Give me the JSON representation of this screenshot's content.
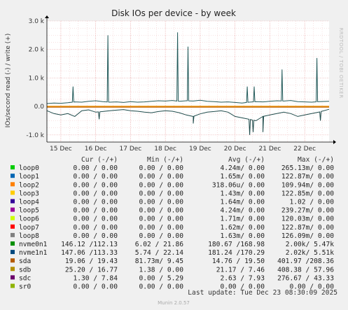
{
  "chart_data": {
    "type": "line",
    "title": "Disk IOs per device - by week",
    "ylabel": "IOs/second read (-) / write (+)",
    "side_label": "RRDTOOL / TOBI OETIKER",
    "ylim": [
      -1250,
      3000
    ],
    "yticks": [
      {
        "value": 3000,
        "label": "3.0 k"
      },
      {
        "value": 2000,
        "label": "2.0 k"
      },
      {
        "value": 1000,
        "label": "1.0 k"
      },
      {
        "value": 0,
        "label": "0.0"
      },
      {
        "value": -1000,
        "label": "-1.0 k"
      }
    ],
    "xlim": [
      0,
      8.1
    ],
    "xticks": [
      {
        "value": 0.4,
        "label": "15 Dec"
      },
      {
        "value": 1.4,
        "label": "16 Dec"
      },
      {
        "value": 2.4,
        "label": "17 Dec"
      },
      {
        "value": 3.4,
        "label": "18 Dec"
      },
      {
        "value": 4.4,
        "label": "19 Dec"
      },
      {
        "value": 5.4,
        "label": "20 Dec"
      },
      {
        "value": 6.4,
        "label": "21 Dec"
      },
      {
        "value": 7.4,
        "label": "22 Dec"
      }
    ],
    "series_colors": {
      "nvme0n1": "#235a5a",
      "nvme1n1": "#1e4a4a",
      "sda": "#c06000",
      "loop2": "#f0a020"
    },
    "write_series": {
      "x": [
        0.0,
        0.2,
        0.4,
        0.6,
        0.8,
        1.0,
        1.2,
        1.4,
        1.6,
        1.8,
        2.0,
        2.2,
        2.4,
        2.6,
        2.8,
        3.0,
        3.2,
        3.4,
        3.6,
        3.8,
        4.0,
        4.2,
        4.4,
        4.6,
        4.8,
        5.0,
        5.2,
        5.4,
        5.6,
        5.8,
        6.0,
        6.2,
        6.4,
        6.6,
        6.8,
        7.0,
        7.2,
        7.4,
        7.6,
        7.8,
        8.1
      ],
      "values": [
        100,
        120,
        110,
        130,
        160,
        150,
        180,
        200,
        170,
        150,
        160,
        140,
        170,
        150,
        160,
        180,
        200,
        190,
        210,
        180,
        200,
        190,
        220,
        180,
        170,
        150,
        160,
        140,
        120,
        150,
        170,
        160,
        180,
        200,
        190,
        210,
        170,
        160,
        150,
        170,
        180
      ]
    },
    "write_spikes": [
      {
        "x": 0.75,
        "value": 700
      },
      {
        "x": 1.75,
        "value": 2500
      },
      {
        "x": 3.75,
        "value": 2600
      },
      {
        "x": 4.05,
        "value": 2100
      },
      {
        "x": 5.75,
        "value": 700
      },
      {
        "x": 5.95,
        "value": 700
      },
      {
        "x": 6.75,
        "value": 1300
      },
      {
        "x": 7.75,
        "value": 1700
      }
    ],
    "read_series": {
      "x": [
        0.0,
        0.2,
        0.4,
        0.6,
        0.8,
        1.0,
        1.2,
        1.4,
        1.6,
        1.8,
        2.0,
        2.2,
        2.4,
        2.6,
        2.8,
        3.0,
        3.2,
        3.4,
        3.6,
        3.8,
        4.0,
        4.2,
        4.4,
        4.6,
        4.8,
        5.0,
        5.2,
        5.4,
        5.6,
        5.8,
        6.0,
        6.2,
        6.4,
        6.6,
        6.8,
        7.0,
        7.2,
        7.4,
        7.6,
        7.8,
        8.1
      ],
      "values": [
        -150,
        -250,
        -300,
        -250,
        -350,
        -150,
        -120,
        -200,
        -180,
        -150,
        -130,
        -110,
        -150,
        -170,
        -200,
        -220,
        -180,
        -150,
        -170,
        -220,
        -300,
        -350,
        -260,
        -200,
        -180,
        -150,
        -200,
        -350,
        -400,
        -450,
        -500,
        -350,
        -300,
        -250,
        -200,
        -250,
        -350,
        -300,
        -250,
        -200,
        -100
      ]
    },
    "read_spikes": [
      {
        "x": 1.5,
        "value": -450
      },
      {
        "x": 4.2,
        "value": -600
      },
      {
        "x": 5.82,
        "value": -1000
      },
      {
        "x": 5.92,
        "value": -900
      },
      {
        "x": 6.2,
        "value": -900
      },
      {
        "x": 7.85,
        "value": -500
      }
    ],
    "legend": {
      "headers": [
        "Cur (-/+)",
        "Min (-/+)",
        "Avg (-/+)",
        "Max (-/+)"
      ],
      "rows": [
        {
          "name": "loop0",
          "color": "#00cc00",
          "cur": "0.00 /  0.00",
          "min": "0.00 /  0.00",
          "avg": "4.24m/  0.00",
          "max": "265.13m/  0.00"
        },
        {
          "name": "loop1",
          "color": "#0066b3",
          "cur": "0.00 /  0.00",
          "min": "0.00 /  0.00",
          "avg": "1.65m/  0.00",
          "max": "122.87m/  0.00"
        },
        {
          "name": "loop2",
          "color": "#ff8000",
          "cur": "0.00 /  0.00",
          "min": "0.00 /  0.00",
          "avg": "318.06u/  0.00",
          "max": "109.94m/  0.00"
        },
        {
          "name": "loop3",
          "color": "#ffcc00",
          "cur": "0.00 /  0.00",
          "min": "0.00 /  0.00",
          "avg": "1.43m/  0.00",
          "max": "122.85m/  0.00"
        },
        {
          "name": "loop4",
          "color": "#330099",
          "cur": "0.00 /  0.00",
          "min": "0.00 /  0.00",
          "avg": "1.64m/  0.00",
          "max": "1.02 /  0.00"
        },
        {
          "name": "loop5",
          "color": "#990099",
          "cur": "0.00 /  0.00",
          "min": "0.00 /  0.00",
          "avg": "4.24m/  0.00",
          "max": "239.27m/  0.00"
        },
        {
          "name": "loop6",
          "color": "#ccff00",
          "cur": "0.00 /  0.00",
          "min": "0.00 /  0.00",
          "avg": "1.71m/  0.00",
          "max": "120.03m/  0.00"
        },
        {
          "name": "loop7",
          "color": "#ff0000",
          "cur": "0.00 /  0.00",
          "min": "0.00 /  0.00",
          "avg": "1.62m/  0.00",
          "max": "122.87m/  0.00"
        },
        {
          "name": "loop8",
          "color": "#808080",
          "cur": "0.00 /  0.00",
          "min": "0.00 /  0.00",
          "avg": "1.63m/  0.00",
          "max": "126.09m/  0.00"
        },
        {
          "name": "nvme0n1",
          "color": "#008f00",
          "cur": "146.12 /112.13",
          "min": "6.02 / 21.86",
          "avg": "180.67 /168.98",
          "max": "2.00k/  5.47k"
        },
        {
          "name": "nvme1n1",
          "color": "#00487d",
          "cur": "147.06 /113.33",
          "min": "5.74 / 22.14",
          "avg": "181.24 /170.29",
          "max": "2.02k/  5.51k"
        },
        {
          "name": "sda",
          "color": "#b35a00",
          "cur": "19.06 / 19.43",
          "min": "81.73m/  9.45",
          "avg": "14.76 / 19.50",
          "max": "401.97 /208.36"
        },
        {
          "name": "sdb",
          "color": "#b38f00",
          "cur": "25.20 / 16.77",
          "min": "1.38 /  0.00",
          "avg": "21.17 /  7.46",
          "max": "408.38 / 57.96"
        },
        {
          "name": "sdc",
          "color": "#6b006b",
          "cur": "1.30 /  7.84",
          "min": "0.00 /  5.29",
          "avg": "2.63 /  7.93",
          "max": "276.67 / 43.33"
        },
        {
          "name": "sr0",
          "color": "#8fb300",
          "cur": "0.00 /  0.00",
          "min": "0.00 /  0.00",
          "avg": "0.00 /  0.00",
          "max": "0.00 /  0.00"
        }
      ]
    },
    "last_update": "Last update: Tue Dec 23 08:30:09 2025",
    "version": "Munin 2.0.57"
  }
}
